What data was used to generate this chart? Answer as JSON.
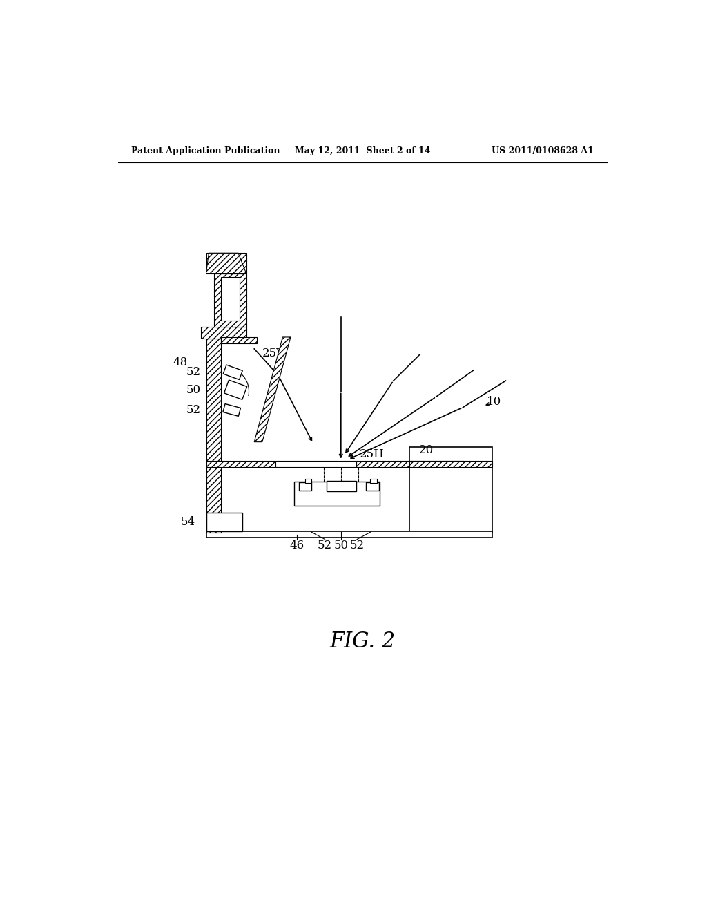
{
  "bg_color": "#ffffff",
  "line_color": "#000000",
  "header_left": "Patent Application Publication",
  "header_center": "May 12, 2011  Sheet 2 of 14",
  "header_right": "US 2011/0108628 A1",
  "fig_label": "FIG. 2"
}
